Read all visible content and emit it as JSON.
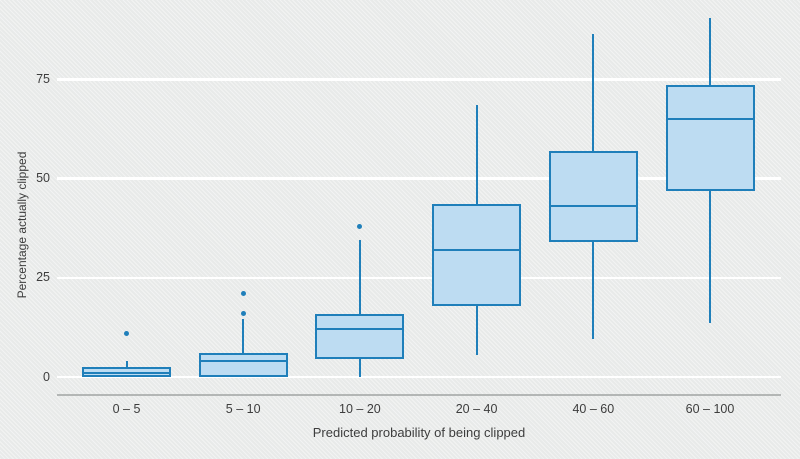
{
  "chart_data": {
    "type": "boxplot",
    "title": "",
    "xlabel": "Predicted probability of being clipped",
    "ylabel": "Percentage actually clipped",
    "ylim": [
      0,
      95
    ],
    "yticks": [
      "0",
      "25",
      "50",
      "75"
    ],
    "ytick_values": [
      0,
      25,
      50,
      75
    ],
    "grid": "horizontal white gridlines on gray panel",
    "legend": false,
    "categories": [
      "0 – 5",
      "5 – 10",
      "10 – 20",
      "20 – 40",
      "40 – 60",
      "60 – 100"
    ],
    "series": [
      {
        "category": "0 – 5",
        "min": 0,
        "q1": 0,
        "median": 1,
        "q3": 2.5,
        "max": 4,
        "outliers": [
          11
        ]
      },
      {
        "category": "5 – 10",
        "min": 0,
        "q1": 0,
        "median": 4,
        "q3": 6,
        "max": 14.5,
        "outliers": [
          16,
          21
        ]
      },
      {
        "category": "10 – 20",
        "min": 0,
        "q1": 4.5,
        "median": 12,
        "q3": 16,
        "max": 34.5,
        "outliers": [
          38
        ]
      },
      {
        "category": "20 – 40",
        "min": 5.5,
        "q1": 18,
        "median": 32,
        "q3": 43.5,
        "max": 68.5,
        "outliers": []
      },
      {
        "category": "40 – 60",
        "min": 9.5,
        "q1": 34,
        "median": 43,
        "q3": 57,
        "max": 86.5,
        "outliers": []
      },
      {
        "category": "60 – 100",
        "min": 13.5,
        "q1": 47,
        "median": 65,
        "q3": 73.5,
        "max": 90.5,
        "outliers": []
      }
    ],
    "colors": {
      "box_fill": "#bddcf2",
      "box_stroke": "#1f7fba",
      "background": "#ebedec",
      "gridline": "#ffffff",
      "axis_line": "#b3b6b5",
      "text": "#3d3d3d"
    }
  }
}
